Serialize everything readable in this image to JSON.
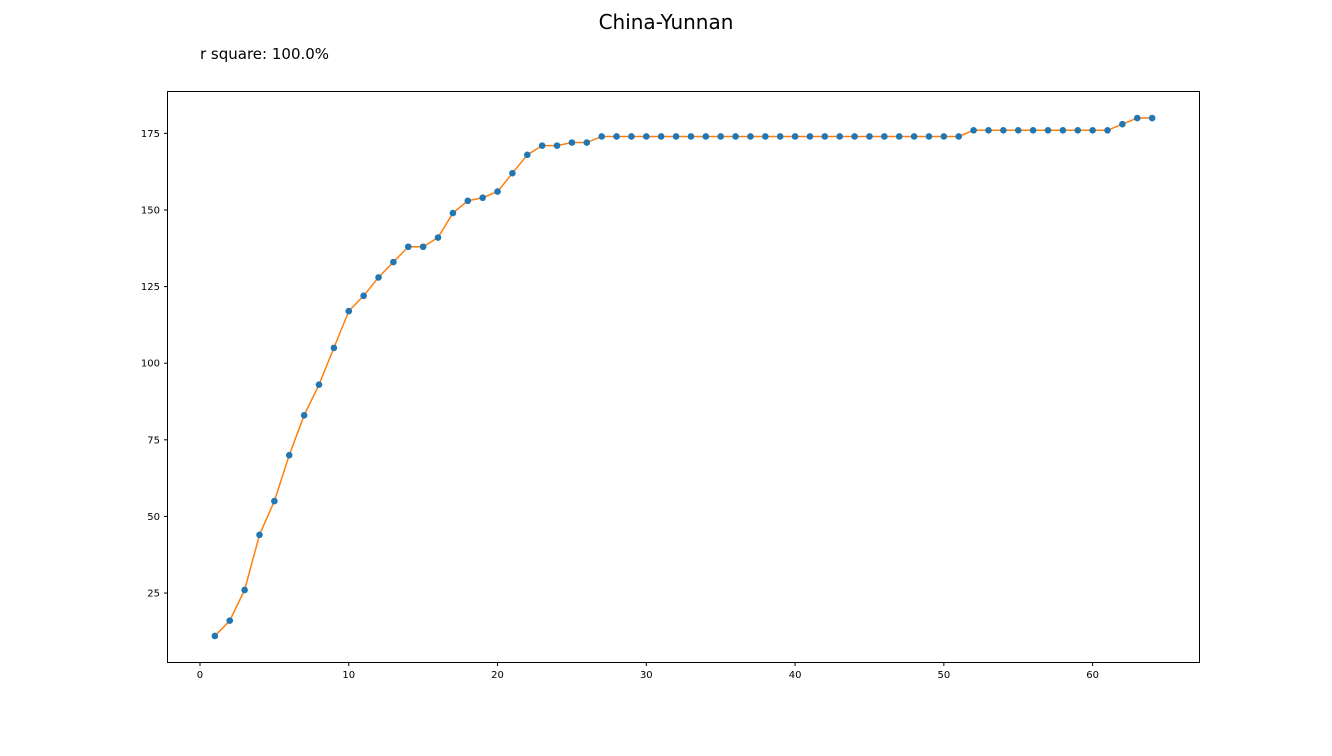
{
  "chart_data": {
    "type": "line",
    "title": "China-Yunnan",
    "annotation": "r square: 100.0%",
    "xlabel": "",
    "ylabel": "",
    "xlim": [
      -2.15,
      67.15
    ],
    "ylim": [
      2.5,
      188.5
    ],
    "xticks": [
      0,
      10,
      20,
      30,
      40,
      50,
      60
    ],
    "yticks": [
      25,
      50,
      75,
      100,
      125,
      150,
      175
    ],
    "grid": false,
    "legend": "none",
    "series": [
      {
        "kind": "scatter",
        "color": "#1f77b4",
        "x": [
          1,
          2,
          3,
          4,
          5,
          6,
          7,
          8,
          9,
          10,
          11,
          12,
          13,
          14,
          15,
          16,
          17,
          18,
          19,
          20,
          21,
          22,
          23,
          24,
          25,
          26,
          27,
          28,
          29,
          30,
          31,
          32,
          33,
          34,
          35,
          36,
          37,
          38,
          39,
          40,
          41,
          42,
          43,
          44,
          45,
          46,
          47,
          48,
          49,
          50,
          51,
          52,
          53,
          54,
          55,
          56,
          57,
          58,
          59,
          60,
          61,
          62,
          63,
          64
        ],
        "y": [
          11,
          16,
          26,
          44,
          55,
          70,
          83,
          93,
          105,
          117,
          122,
          128,
          133,
          138,
          138,
          141,
          149,
          153,
          154,
          156,
          162,
          168,
          171,
          171,
          172,
          172,
          174,
          174,
          174,
          174,
          174,
          174,
          174,
          174,
          174,
          174,
          174,
          174,
          174,
          174,
          174,
          174,
          174,
          174,
          174,
          174,
          174,
          174,
          174,
          174,
          174,
          176,
          176,
          176,
          176,
          176,
          176,
          176,
          176,
          176,
          176,
          178,
          180,
          180
        ]
      },
      {
        "kind": "line",
        "color": "#ff7f0e",
        "x": [
          1,
          2,
          3,
          4,
          5,
          6,
          7,
          8,
          9,
          10,
          11,
          12,
          13,
          14,
          15,
          16,
          17,
          18,
          19,
          20,
          21,
          22,
          23,
          24,
          25,
          26,
          27,
          28,
          29,
          30,
          31,
          32,
          33,
          34,
          35,
          36,
          37,
          38,
          39,
          40,
          41,
          42,
          43,
          44,
          45,
          46,
          47,
          48,
          49,
          50,
          51,
          52,
          53,
          54,
          55,
          56,
          57,
          58,
          59,
          60,
          61,
          62,
          63,
          64
        ],
        "y": [
          11,
          16,
          26,
          44,
          55,
          70,
          83,
          93,
          105,
          117,
          122,
          128,
          133,
          138,
          138,
          141,
          149,
          153,
          154,
          156,
          162,
          168,
          171,
          171,
          172,
          172,
          174,
          174,
          174,
          174,
          174,
          174,
          174,
          174,
          174,
          174,
          174,
          174,
          174,
          174,
          174,
          174,
          174,
          174,
          174,
          174,
          174,
          174,
          174,
          174,
          174,
          176,
          176,
          176,
          176,
          176,
          176,
          176,
          176,
          176,
          176,
          178,
          180,
          180
        ]
      }
    ]
  }
}
